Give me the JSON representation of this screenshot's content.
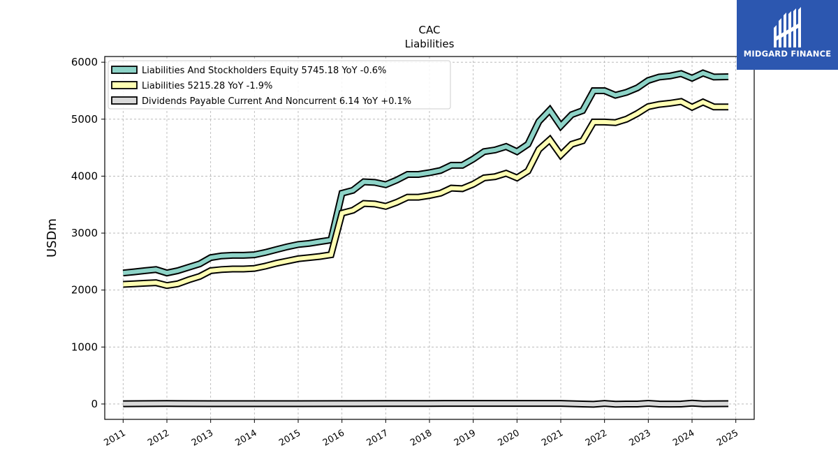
{
  "brand": {
    "name": "MIDGARD FINANCE",
    "bg_color": "#2c57b0"
  },
  "chart_data": {
    "type": "line",
    "title": "CAC",
    "subtitle": "Liabilities",
    "xlabel": "",
    "ylabel": "USDm",
    "xlim": [
      2010.58,
      2025.42
    ],
    "ylim": [
      -270,
      6100
    ],
    "x_ticks": [
      2011,
      2012,
      2013,
      2014,
      2015,
      2016,
      2017,
      2018,
      2019,
      2020,
      2021,
      2022,
      2023,
      2024,
      2025
    ],
    "y_ticks": [
      0,
      1000,
      2000,
      3000,
      4000,
      5000,
      6000
    ],
    "grid": true,
    "legend_position": "top-left",
    "series": [
      {
        "name": "Liabilities And Stockholders Equity",
        "legend": "Liabilities And Stockholders Equity  5745.18 YoY -0.6%",
        "color": "#8dd3c7",
        "x": [
          2011.0,
          2011.25,
          2011.5,
          2011.75,
          2012.0,
          2012.25,
          2012.5,
          2012.75,
          2013.0,
          2013.25,
          2013.5,
          2013.75,
          2014.0,
          2014.25,
          2014.5,
          2014.75,
          2015.0,
          2015.25,
          2015.5,
          2015.75,
          2016.0,
          2016.25,
          2016.5,
          2016.75,
          2017.0,
          2017.25,
          2017.5,
          2017.75,
          2018.0,
          2018.25,
          2018.5,
          2018.75,
          2019.0,
          2019.25,
          2019.5,
          2019.75,
          2020.0,
          2020.25,
          2020.5,
          2020.75,
          2021.0,
          2021.25,
          2021.5,
          2021.75,
          2022.0,
          2022.25,
          2022.5,
          2022.75,
          2023.0,
          2023.25,
          2023.5,
          2023.75,
          2024.0,
          2024.25,
          2024.5,
          2024.83
        ],
        "values": [
          2300,
          2320,
          2340,
          2360,
          2300,
          2340,
          2400,
          2460,
          2570,
          2600,
          2610,
          2610,
          2620,
          2660,
          2710,
          2760,
          2800,
          2820,
          2850,
          2880,
          3700,
          3750,
          3900,
          3890,
          3850,
          3930,
          4030,
          4030,
          4060,
          4100,
          4190,
          4190,
          4300,
          4430,
          4460,
          4520,
          4430,
          4560,
          4960,
          5160,
          4880,
          5080,
          5150,
          5500,
          5500,
          5420,
          5470,
          5550,
          5680,
          5740,
          5760,
          5800,
          5720,
          5810,
          5740,
          5745.18
        ]
      },
      {
        "name": "Liabilities",
        "legend": "Liabilities  5215.28 YoY -1.9%",
        "color": "#ffffb3",
        "x": [
          2011.0,
          2011.25,
          2011.5,
          2011.75,
          2012.0,
          2012.25,
          2012.5,
          2012.75,
          2013.0,
          2013.25,
          2013.5,
          2013.75,
          2014.0,
          2014.25,
          2014.5,
          2014.75,
          2015.0,
          2015.25,
          2015.5,
          2015.75,
          2016.0,
          2016.25,
          2016.5,
          2016.75,
          2017.0,
          2017.25,
          2017.5,
          2017.75,
          2018.0,
          2018.25,
          2018.5,
          2018.75,
          2019.0,
          2019.25,
          2019.5,
          2019.75,
          2020.0,
          2020.25,
          2020.5,
          2020.75,
          2021.0,
          2021.25,
          2021.5,
          2021.75,
          2022.0,
          2022.25,
          2022.5,
          2022.75,
          2023.0,
          2023.25,
          2023.5,
          2023.75,
          2024.0,
          2024.25,
          2024.5,
          2024.83
        ],
        "values": [
          2100,
          2110,
          2120,
          2130,
          2080,
          2110,
          2180,
          2240,
          2340,
          2360,
          2370,
          2370,
          2380,
          2420,
          2470,
          2510,
          2550,
          2570,
          2590,
          2620,
          3350,
          3400,
          3520,
          3510,
          3470,
          3540,
          3630,
          3630,
          3660,
          3700,
          3790,
          3780,
          3860,
          3970,
          3990,
          4050,
          3970,
          4090,
          4470,
          4640,
          4370,
          4560,
          4620,
          4950,
          4950,
          4940,
          5000,
          5100,
          5220,
          5260,
          5280,
          5310,
          5210,
          5300,
          5215,
          5215.28
        ]
      },
      {
        "name": "Dividends Payable Current And Noncurrent",
        "legend": "Dividends Payable Current And Noncurrent  6.14 YoY +0.1%",
        "color": "#d9d9d9",
        "x": [
          2011.0,
          2012.0,
          2013.0,
          2014.0,
          2015.0,
          2016.0,
          2017.0,
          2018.0,
          2019.0,
          2020.0,
          2021.0,
          2021.5,
          2021.75,
          2022.0,
          2022.25,
          2022.5,
          2022.75,
          2023.0,
          2023.25,
          2023.5,
          2023.75,
          2024.0,
          2024.25,
          2024.5,
          2024.83
        ],
        "values": [
          5,
          8,
          6,
          6,
          6,
          7,
          8,
          9,
          10,
          10,
          10,
          0,
          -5,
          10,
          -3,
          0,
          0,
          12,
          0,
          -2,
          0,
          14,
          2,
          4,
          6.14
        ]
      }
    ]
  }
}
